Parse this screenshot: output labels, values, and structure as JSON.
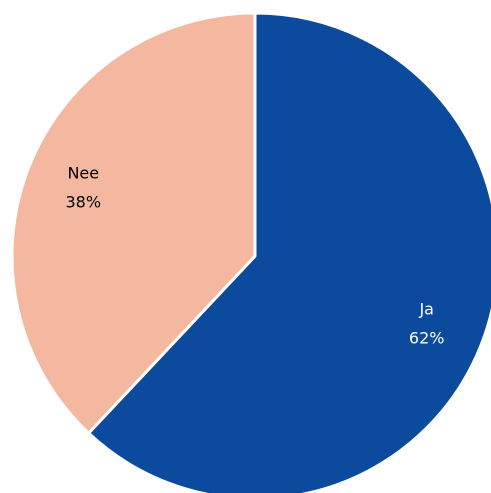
{
  "chart_data": {
    "type": "pie",
    "categories": [
      "Ja",
      "Nee"
    ],
    "values": [
      62,
      38
    ],
    "value_labels": [
      "62%",
      "38%"
    ],
    "colors": [
      "#0b4a9c",
      "#f4b8a1"
    ],
    "label_colors": [
      "#ffffff",
      "#000000"
    ]
  }
}
